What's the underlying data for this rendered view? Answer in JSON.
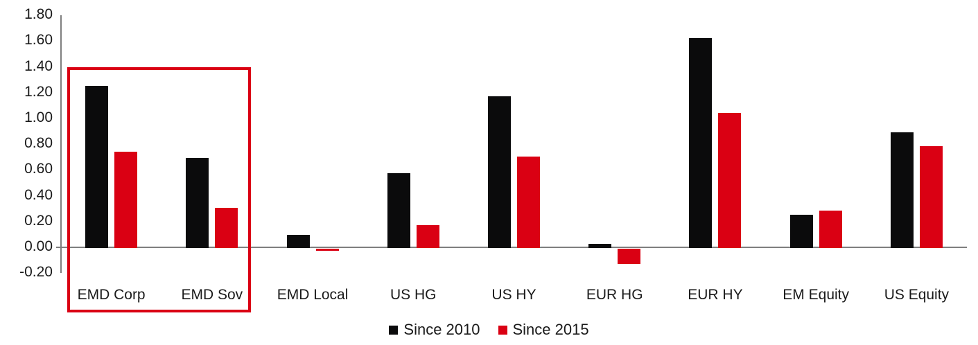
{
  "chart_data": {
    "type": "bar",
    "title": "",
    "categories": [
      "EMD Corp",
      "EMD Sov",
      "EMD Local",
      "US HG",
      "US HY",
      "EUR HG",
      "EUR HY",
      "EM Equity",
      "US Equity"
    ],
    "series": [
      {
        "name": "Since 2010",
        "color": "#0b0b0c",
        "values": [
          1.26,
          0.7,
          0.1,
          0.58,
          1.18,
          0.03,
          1.63,
          0.26,
          0.9
        ]
      },
      {
        "name": "Since 2015",
        "color": "#da0013",
        "values": [
          0.75,
          0.31,
          -0.02,
          0.18,
          0.71,
          -0.12,
          1.05,
          0.29,
          0.79
        ]
      }
    ],
    "ylim": [
      -0.2,
      1.8
    ],
    "yticks": [
      1.8,
      1.6,
      1.4,
      1.2,
      1.0,
      0.8,
      0.6,
      0.4,
      0.2,
      0.0,
      -0.2
    ],
    "ytick_labels": [
      "1.80",
      "1.60",
      "1.40",
      "1.20",
      "1.00",
      "0.80",
      "0.60",
      "0.40",
      "0.20",
      "0.00",
      "-0.20"
    ],
    "xlabel": "",
    "ylabel": "",
    "grid": false,
    "legend_position": "bottom-center",
    "annotation": {
      "type": "highlight-box",
      "categories": [
        "EMD Corp",
        "EMD Sov"
      ],
      "color": "#da0013"
    }
  },
  "colors": {
    "background": "#ffffff",
    "axis": "#7f7f7f",
    "text": "#1a1a1a",
    "series_since_2010": "#0b0b0c",
    "series_since_2015": "#da0013",
    "highlight_box": "#da0013"
  }
}
